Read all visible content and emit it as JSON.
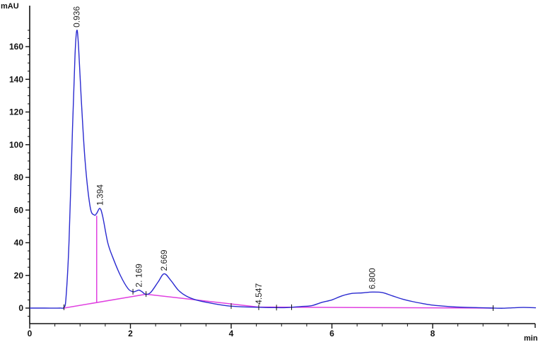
{
  "chart_data": {
    "type": "line",
    "title": "",
    "xlabel": "min",
    "ylabel": "mAU",
    "xlim": [
      0,
      10.05
    ],
    "ylim": [
      -9,
      175
    ],
    "grid": false,
    "legend": null,
    "x_ticks": [
      0,
      2,
      4,
      6,
      8
    ],
    "x_tick_labels": [
      "0",
      "2",
      "4",
      "6",
      "8"
    ],
    "x_minor_step": 0.75,
    "y_ticks": [
      0,
      20,
      40,
      60,
      80,
      100,
      120,
      140,
      160
    ],
    "y_tick_labels": [
      "0",
      "20",
      "40",
      "60",
      "80",
      "100",
      "120",
      "140",
      "160"
    ],
    "y_minor_step": 5,
    "colors": {
      "signal": "#2a2ad0",
      "baseline": "#e040e0",
      "axis": "#111111"
    },
    "series": [
      {
        "name": "signal",
        "x": [
          0,
          0.3,
          0.6,
          0.68,
          0.72,
          0.78,
          0.85,
          0.9,
          0.936,
          0.97,
          1.02,
          1.1,
          1.2,
          1.28,
          1.33,
          1.394,
          1.45,
          1.55,
          1.65,
          1.8,
          1.95,
          2.05,
          2.12,
          2.169,
          2.23,
          2.3,
          2.4,
          2.55,
          2.669,
          2.8,
          2.95,
          3.1,
          3.3,
          3.6,
          3.9,
          4.2,
          4.547,
          4.8,
          5.1,
          5.4,
          5.6,
          5.8,
          6.0,
          6.2,
          6.4,
          6.6,
          6.8,
          7.0,
          7.2,
          7.4,
          7.6,
          7.8,
          8.0,
          8.3,
          8.6,
          9.0,
          9.2,
          9.4,
          9.6,
          9.8,
          10.05
        ],
        "y": [
          0,
          0,
          0,
          0.5,
          6,
          40,
          110,
          155,
          170,
          160,
          130,
          90,
          62,
          57,
          58,
          61,
          56,
          40,
          31,
          20,
          12,
          10,
          10.5,
          11,
          10,
          8.5,
          9.5,
          16,
          21,
          17,
          11,
          7.5,
          5,
          3,
          1.5,
          0.8,
          0.5,
          0.3,
          0.3,
          1,
          1.5,
          3.5,
          5,
          7.5,
          9,
          9.3,
          9.8,
          9.5,
          7.5,
          5.5,
          4,
          2.8,
          1.8,
          1,
          0.5,
          0.2,
          0,
          -0.1,
          0.2,
          0.4,
          0.2
        ]
      },
      {
        "name": "baseline",
        "x": [
          0.68,
          2.31,
          4.547,
          9.2
        ],
        "y": [
          0,
          8.5,
          0.6,
          0
        ]
      }
    ],
    "peaks": [
      {
        "rt": 0.936,
        "label": "0.936",
        "height": 170
      },
      {
        "rt": 1.394,
        "label": "1.394",
        "height": 61
      },
      {
        "rt": 2.169,
        "label": "2. 169",
        "height": 11
      },
      {
        "rt": 2.669,
        "label": "2.669",
        "height": 21
      },
      {
        "rt": 4.547,
        "label": "4.547",
        "height": 0.5
      },
      {
        "rt": 6.8,
        "label": "6.800",
        "height": 9.8
      }
    ],
    "drop_lines": [
      {
        "x": 1.33,
        "y_top": 56.5
      }
    ],
    "integration_markers": [
      0.68,
      2.05,
      2.31,
      4.0,
      4.547,
      4.9,
      5.2,
      9.2
    ]
  }
}
